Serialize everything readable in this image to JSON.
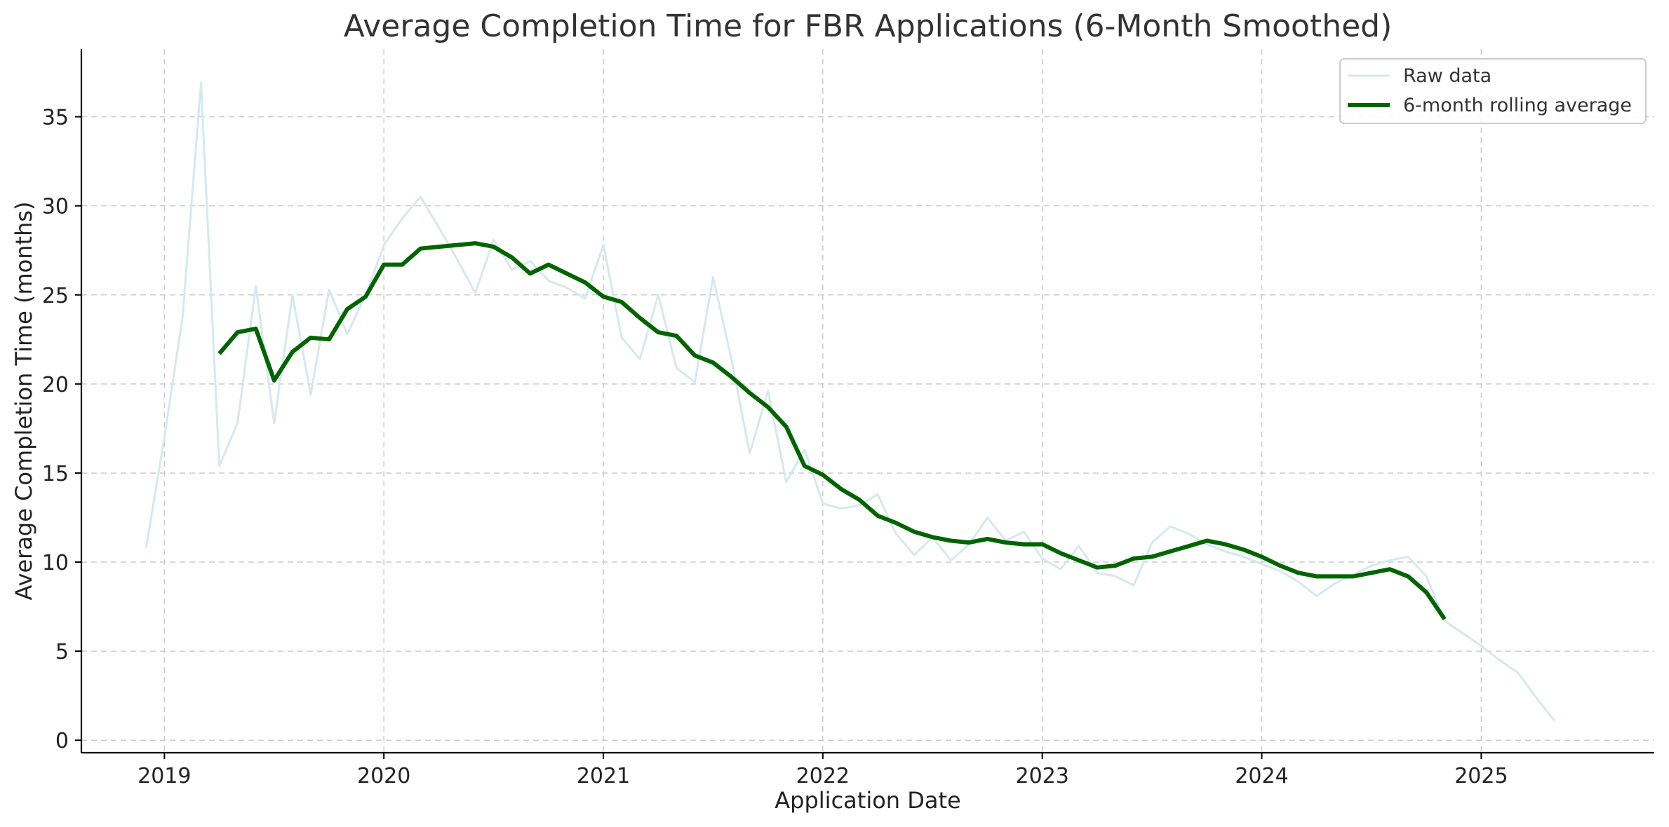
{
  "chart_data": {
    "type": "line",
    "title": "Average Completion Time for FBR Applications (6-Month Smoothed)",
    "xlabel": "Application Date",
    "ylabel": "Average Completion Time (months)",
    "x_ticks": [
      "2019",
      "2020",
      "2021",
      "2022",
      "2023",
      "2024",
      "2025"
    ],
    "y_ticks": [
      0,
      5,
      10,
      15,
      20,
      25,
      30,
      35
    ],
    "xlim": [
      "2018-08-15",
      "2025-10-15"
    ],
    "ylim": [
      -0.7,
      38.8
    ],
    "grid": true,
    "legend_position": "top-right",
    "series": [
      {
        "name": "Raw data",
        "color": "#d4e9ef",
        "line_width": 3,
        "x": [
          "2018-12",
          "2019-01",
          "2019-02",
          "2019-03",
          "2019-04",
          "2019-05",
          "2019-06",
          "2019-07",
          "2019-08",
          "2019-09",
          "2019-10",
          "2019-11",
          "2019-12",
          "2020-01",
          "2020-02",
          "2020-03",
          "2020-04",
          "2020-05",
          "2020-06",
          "2020-07",
          "2020-08",
          "2020-09",
          "2020-10",
          "2020-11",
          "2020-12",
          "2021-01",
          "2021-02",
          "2021-03",
          "2021-04",
          "2021-05",
          "2021-06",
          "2021-07",
          "2021-08",
          "2021-09",
          "2021-10",
          "2021-11",
          "2021-12",
          "2022-01",
          "2022-02",
          "2022-03",
          "2022-04",
          "2022-05",
          "2022-06",
          "2022-07",
          "2022-08",
          "2022-09",
          "2022-10",
          "2022-11",
          "2022-12",
          "2023-01",
          "2023-02",
          "2023-03",
          "2023-04",
          "2023-05",
          "2023-06",
          "2023-07",
          "2023-08",
          "2023-09",
          "2023-10",
          "2023-11",
          "2023-12",
          "2024-01",
          "2024-02",
          "2024-03",
          "2024-04",
          "2024-05",
          "2024-06",
          "2024-07",
          "2024-08",
          "2024-09",
          "2024-10",
          "2024-11",
          "2024-12",
          "2025-01",
          "2025-02",
          "2025-03",
          "2025-04",
          "2025-05"
        ],
        "values": [
          10.8,
          17.0,
          23.8,
          36.9,
          15.4,
          17.8,
          25.5,
          17.8,
          25.0,
          19.4,
          25.3,
          22.8,
          25.0,
          27.8,
          29.3,
          30.5,
          28.8,
          27.0,
          25.1,
          28.1,
          26.4,
          26.9,
          25.8,
          25.4,
          24.8,
          27.8,
          22.6,
          21.4,
          25.0,
          20.9,
          20.1,
          26.0,
          21.4,
          16.1,
          19.6,
          14.5,
          16.3,
          13.3,
          13.0,
          13.2,
          13.8,
          11.6,
          10.4,
          11.4,
          10.1,
          11.0,
          12.5,
          11.2,
          11.7,
          10.2,
          9.6,
          10.9,
          9.4,
          9.2,
          8.7,
          11.1,
          12.0,
          11.6,
          11.0,
          10.6,
          10.3,
          9.9,
          9.5,
          8.9,
          8.1,
          8.8,
          9.3,
          9.8,
          10.1,
          10.3,
          9.2,
          6.7,
          6.0,
          5.3,
          4.5,
          3.8,
          2.4,
          1.1
        ]
      },
      {
        "name": "6-month rolling average",
        "color": "#006400",
        "line_width": 6,
        "x": [
          "2019-04",
          "2019-05",
          "2019-06",
          "2019-07",
          "2019-08",
          "2019-09",
          "2019-10",
          "2019-11",
          "2019-12",
          "2020-01",
          "2020-02",
          "2020-03",
          "2020-04",
          "2020-05",
          "2020-06",
          "2020-07",
          "2020-08",
          "2020-09",
          "2020-10",
          "2020-11",
          "2020-12",
          "2021-01",
          "2021-02",
          "2021-03",
          "2021-04",
          "2021-05",
          "2021-06",
          "2021-07",
          "2021-08",
          "2021-09",
          "2021-10",
          "2021-11",
          "2021-12",
          "2022-01",
          "2022-02",
          "2022-03",
          "2022-04",
          "2022-05",
          "2022-06",
          "2022-07",
          "2022-08",
          "2022-09",
          "2022-10",
          "2022-11",
          "2022-12",
          "2023-01",
          "2023-02",
          "2023-03",
          "2023-04",
          "2023-05",
          "2023-06",
          "2023-07",
          "2023-08",
          "2023-09",
          "2023-10",
          "2023-11",
          "2023-12",
          "2024-01",
          "2024-02",
          "2024-03",
          "2024-04",
          "2024-05",
          "2024-06",
          "2024-07",
          "2024-08",
          "2024-09",
          "2024-10",
          "2024-11"
        ],
        "values": [
          21.7,
          22.9,
          23.1,
          20.2,
          21.8,
          22.6,
          22.5,
          24.2,
          24.9,
          26.7,
          26.7,
          27.6,
          27.7,
          27.8,
          27.9,
          27.7,
          27.1,
          26.2,
          26.7,
          26.2,
          25.7,
          24.9,
          24.6,
          23.7,
          22.9,
          22.7,
          21.6,
          21.2,
          20.4,
          19.5,
          18.7,
          17.6,
          15.4,
          14.9,
          14.1,
          13.5,
          12.6,
          12.2,
          11.7,
          11.4,
          11.2,
          11.1,
          11.3,
          11.1,
          11.0,
          11.0,
          10.5,
          10.1,
          9.7,
          9.8,
          10.2,
          10.3,
          10.6,
          10.9,
          11.2,
          11.0,
          10.7,
          10.3,
          9.8,
          9.4,
          9.2,
          9.2,
          9.2,
          9.4,
          9.6,
          9.2,
          8.3,
          6.8
        ]
      }
    ]
  }
}
